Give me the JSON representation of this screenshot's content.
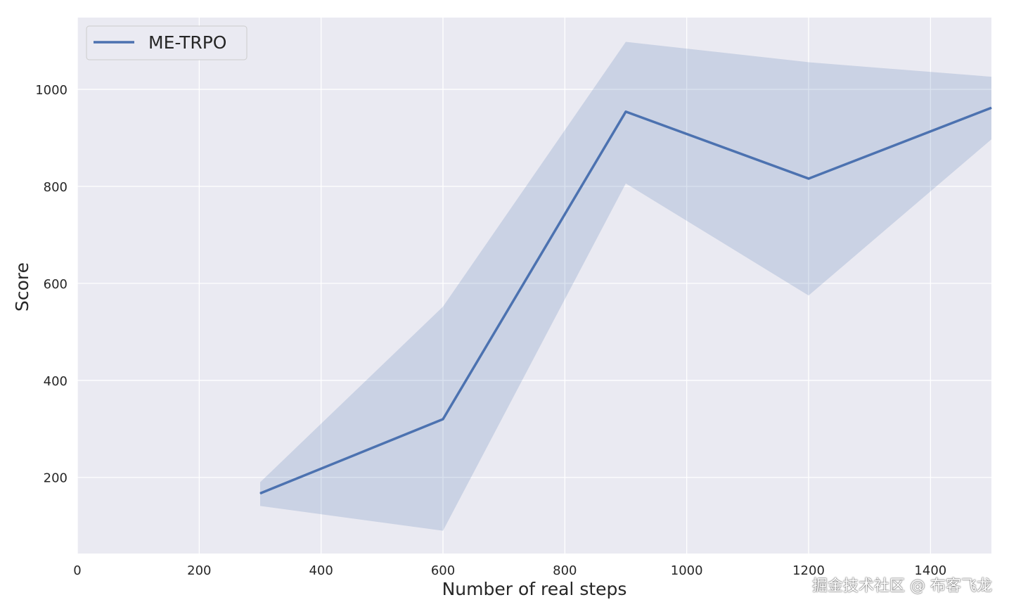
{
  "chart_data": {
    "type": "line",
    "title": "",
    "xlabel": "Number of real steps",
    "ylabel": "Score",
    "xlim": [
      0,
      1500
    ],
    "ylim": [
      43,
      1148
    ],
    "xticks": [
      0,
      200,
      400,
      600,
      800,
      1000,
      1200,
      1400
    ],
    "yticks": [
      200,
      400,
      600,
      800,
      1000
    ],
    "grid": true,
    "legend_position": "top-left",
    "series": [
      {
        "name": "ME-TRPO",
        "color": "#4c72b0",
        "x": [
          300,
          600,
          900,
          1200,
          1500
        ],
        "y": [
          167,
          320,
          954,
          816,
          962
        ],
        "lower": [
          141,
          90,
          806,
          575,
          897
        ],
        "upper": [
          190,
          552,
          1098,
          1056,
          1026
        ]
      }
    ]
  },
  "colors": {
    "background": "#eaeaf2",
    "grid": "#ffffff",
    "text": "#262626"
  },
  "watermark": "掘金技术社区 @ 布客飞龙"
}
